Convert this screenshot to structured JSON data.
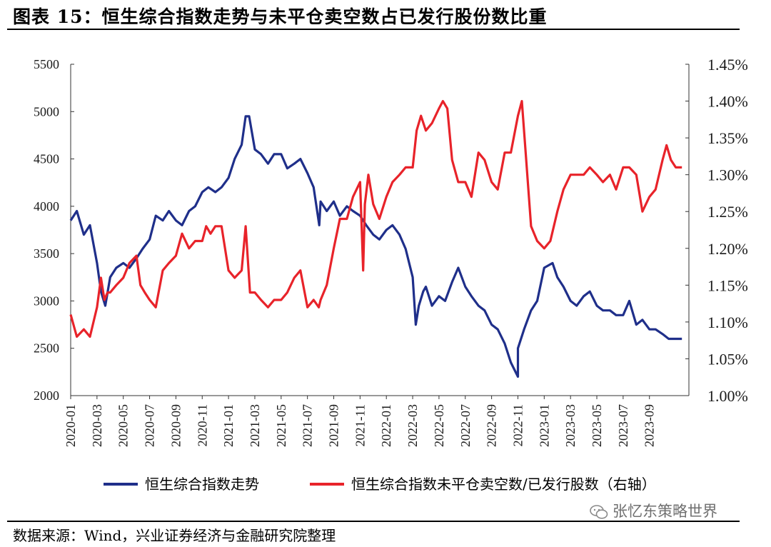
{
  "title": "图表 15：恒生综合指数走势与未平仓卖空数占已发行股份数比重",
  "source": "数据来源：Wind，兴业证券经济与金融研究院整理",
  "watermark": "张忆东策略世界",
  "chart_data": {
    "type": "line",
    "left_axis": {
      "ylim": [
        2000,
        5500
      ],
      "ticks": [
        "2000",
        "2500",
        "3000",
        "3500",
        "4000",
        "4500",
        "5000",
        "5500"
      ]
    },
    "right_axis": {
      "ylim": [
        1.0,
        1.45
      ],
      "ticks": [
        "1.00%",
        "1.05%",
        "1.10%",
        "1.15%",
        "1.20%",
        "1.25%",
        "1.30%",
        "1.35%",
        "1.40%",
        "1.45%"
      ]
    },
    "x_ticks": [
      "2020-01",
      "2020-03",
      "2020-05",
      "2020-07",
      "2020-09",
      "2020-11",
      "2021-01",
      "2021-03",
      "2021-05",
      "2021-07",
      "2021-09",
      "2021-11",
      "2022-01",
      "2022-03",
      "2022-05",
      "2022-07",
      "2022-09",
      "2022-11",
      "2023-01",
      "2023-03",
      "2023-05",
      "2023-07",
      "2023-09"
    ],
    "x_range": [
      "2020-01",
      "2023-12"
    ],
    "colors": {
      "index": "#1f2f8a",
      "short": "#e8232a"
    },
    "series": [
      {
        "name": "恒生综合指数走势",
        "axis": "left",
        "x": [
          "2020-01",
          "2020-01-15",
          "2020-02",
          "2020-02-15",
          "2020-03",
          "2020-03-10",
          "2020-03-20",
          "2020-04",
          "2020-04-15",
          "2020-05",
          "2020-05-15",
          "2020-06",
          "2020-06-15",
          "2020-07",
          "2020-07-15",
          "2020-08",
          "2020-08-15",
          "2020-09",
          "2020-09-15",
          "2020-10",
          "2020-10-15",
          "2020-11",
          "2020-11-15",
          "2020-12",
          "2020-12-15",
          "2021-01",
          "2021-01-15",
          "2021-02",
          "2021-02-10",
          "2021-02-18",
          "2021-03",
          "2021-03-15",
          "2021-04",
          "2021-04-15",
          "2021-05",
          "2021-05-15",
          "2021-06",
          "2021-06-15",
          "2021-07",
          "2021-07-15",
          "2021-07-28",
          "2021-08",
          "2021-08-15",
          "2021-09",
          "2021-09-15",
          "2021-10",
          "2021-10-15",
          "2021-11",
          "2021-11-15",
          "2021-12",
          "2021-12-15",
          "2022-01",
          "2022-01-15",
          "2022-02",
          "2022-02-15",
          "2022-03",
          "2022-03-08",
          "2022-03-15",
          "2022-03-25",
          "2022-04",
          "2022-04-15",
          "2022-05",
          "2022-05-15",
          "2022-06",
          "2022-06-15",
          "2022-07",
          "2022-07-15",
          "2022-08",
          "2022-08-15",
          "2022-09",
          "2022-09-15",
          "2022-10",
          "2022-10-15",
          "2022-10-31",
          "2022-11",
          "2022-11-15",
          "2022-12",
          "2022-12-15",
          "2023-01",
          "2023-01-20",
          "2023-02",
          "2023-02-15",
          "2023-03",
          "2023-03-15",
          "2023-04",
          "2023-04-15",
          "2023-05",
          "2023-05-15",
          "2023-06",
          "2023-06-15",
          "2023-07",
          "2023-07-15",
          "2023-08",
          "2023-08-15",
          "2023-09",
          "2023-09-15",
          "2023-10",
          "2023-10-15",
          "2023-11",
          "2023-11-15"
        ],
        "values": [
          3850,
          3950,
          3700,
          3800,
          3400,
          3100,
          2950,
          3250,
          3350,
          3400,
          3350,
          3450,
          3550,
          3650,
          3900,
          3850,
          3950,
          3850,
          3800,
          3950,
          4000,
          4150,
          4200,
          4150,
          4200,
          4300,
          4500,
          4650,
          4950,
          4950,
          4600,
          4550,
          4450,
          4550,
          4550,
          4400,
          4450,
          4500,
          4350,
          4200,
          3800,
          4050,
          3950,
          4050,
          3900,
          4000,
          3950,
          3900,
          3800,
          3700,
          3650,
          3750,
          3800,
          3700,
          3550,
          3250,
          2750,
          2950,
          3100,
          3150,
          2950,
          3050,
          3000,
          3200,
          3350,
          3150,
          3050,
          2950,
          2900,
          2750,
          2700,
          2550,
          2350,
          2200,
          2500,
          2700,
          2900,
          3000,
          3350,
          3400,
          3250,
          3150,
          3000,
          2950,
          3050,
          3100,
          2950,
          2900,
          2900,
          2850,
          2850,
          3000,
          2750,
          2800,
          2700,
          2700,
          2650,
          2600,
          2600,
          2600
        ]
      },
      {
        "name": "恒生综合指数未平仓卖空数/已发行股数（右轴）",
        "axis": "right",
        "x": [
          "2020-01",
          "2020-01-15",
          "2020-02",
          "2020-02-15",
          "2020-03",
          "2020-03-10",
          "2020-03-18",
          "2020-03-25",
          "2020-04",
          "2020-04-15",
          "2020-05",
          "2020-05-15",
          "2020-06",
          "2020-06-10",
          "2020-06-20",
          "2020-07",
          "2020-07-15",
          "2020-08",
          "2020-08-15",
          "2020-09",
          "2020-09-15",
          "2020-10",
          "2020-10-15",
          "2020-11",
          "2020-11-10",
          "2020-11-20",
          "2020-12",
          "2020-12-15",
          "2021-01",
          "2021-01-15",
          "2021-02",
          "2021-02-10",
          "2021-02-20",
          "2021-03",
          "2021-03-15",
          "2021-04",
          "2021-04-15",
          "2021-05",
          "2021-05-15",
          "2021-06",
          "2021-06-15",
          "2021-07",
          "2021-07-15",
          "2021-07-27",
          "2021-08",
          "2021-08-15",
          "2021-09",
          "2021-09-15",
          "2021-10",
          "2021-10-15",
          "2021-11",
          "2021-11-08",
          "2021-11-12",
          "2021-11-20",
          "2021-12",
          "2021-12-15",
          "2022-01",
          "2022-01-15",
          "2022-02",
          "2022-02-15",
          "2022-03",
          "2022-03-10",
          "2022-03-20",
          "2022-04",
          "2022-04-15",
          "2022-05",
          "2022-05-10",
          "2022-05-20",
          "2022-06",
          "2022-06-15",
          "2022-07",
          "2022-07-15",
          "2022-08",
          "2022-08-15",
          "2022-09",
          "2022-09-15",
          "2022-10",
          "2022-10-15",
          "2022-11",
          "2022-11-10",
          "2022-11-20",
          "2022-12",
          "2022-12-15",
          "2023-01",
          "2023-01-15",
          "2023-02",
          "2023-02-15",
          "2023-03",
          "2023-03-15",
          "2023-04",
          "2023-04-15",
          "2023-05",
          "2023-05-15",
          "2023-06",
          "2023-06-15",
          "2023-07",
          "2023-07-15",
          "2023-08",
          "2023-08-15",
          "2023-09",
          "2023-09-15",
          "2023-10",
          "2023-10-10",
          "2023-10-20",
          "2023-11",
          "2023-11-15"
        ],
        "values": [
          1.11,
          1.08,
          1.09,
          1.08,
          1.12,
          1.16,
          1.13,
          1.14,
          1.14,
          1.15,
          1.16,
          1.18,
          1.19,
          1.15,
          1.14,
          1.13,
          1.12,
          1.17,
          1.18,
          1.19,
          1.22,
          1.2,
          1.21,
          1.21,
          1.23,
          1.22,
          1.23,
          1.23,
          1.17,
          1.16,
          1.17,
          1.23,
          1.14,
          1.14,
          1.13,
          1.12,
          1.13,
          1.13,
          1.14,
          1.16,
          1.17,
          1.12,
          1.13,
          1.12,
          1.13,
          1.15,
          1.2,
          1.24,
          1.24,
          1.27,
          1.29,
          1.17,
          1.26,
          1.3,
          1.26,
          1.24,
          1.27,
          1.29,
          1.3,
          1.31,
          1.31,
          1.36,
          1.38,
          1.36,
          1.37,
          1.39,
          1.4,
          1.39,
          1.32,
          1.29,
          1.29,
          1.27,
          1.33,
          1.32,
          1.29,
          1.28,
          1.33,
          1.33,
          1.38,
          1.4,
          1.32,
          1.23,
          1.21,
          1.2,
          1.21,
          1.25,
          1.28,
          1.3,
          1.3,
          1.3,
          1.31,
          1.3,
          1.29,
          1.3,
          1.28,
          1.31,
          1.31,
          1.3,
          1.25,
          1.27,
          1.28,
          1.32,
          1.34,
          1.32,
          1.31,
          1.31
        ]
      }
    ]
  }
}
